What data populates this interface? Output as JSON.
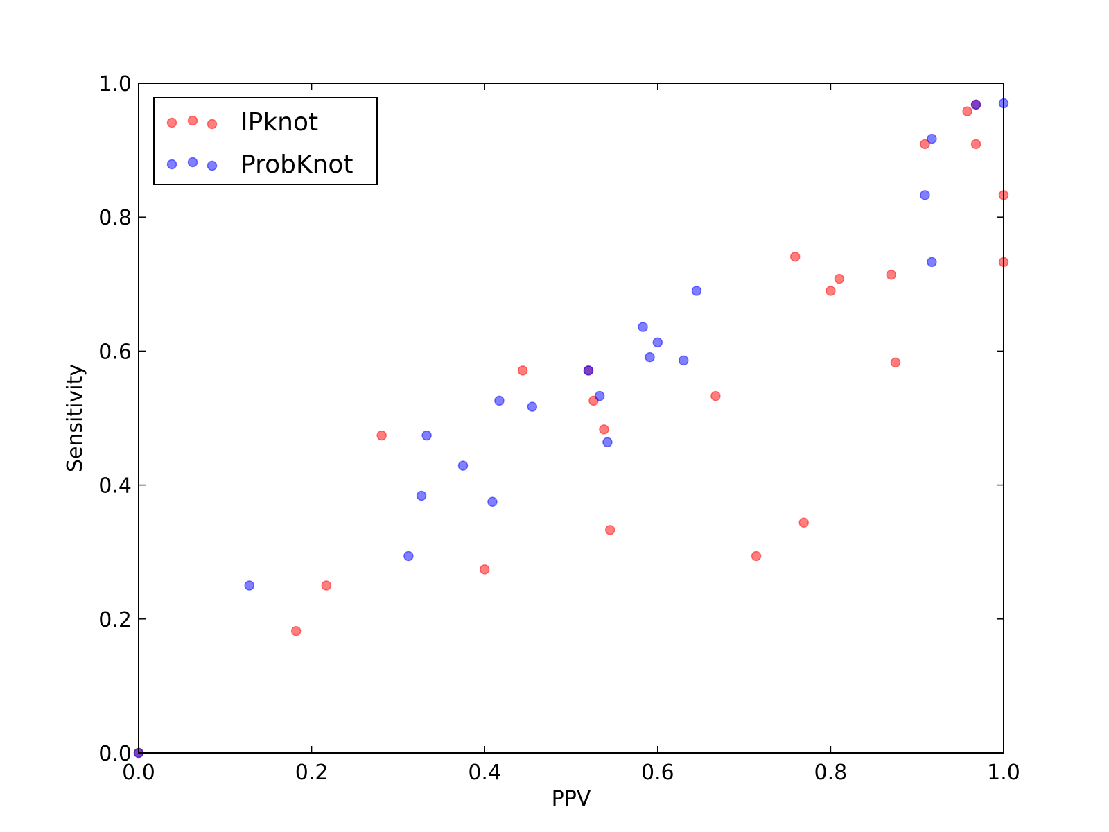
{
  "chart_data": {
    "type": "scatter",
    "xlabel": "PPV",
    "ylabel": "Sensitivity",
    "xlim": [
      0,
      1
    ],
    "ylim": [
      0,
      1
    ],
    "xticks": [
      "0.0",
      "0.2",
      "0.4",
      "0.6",
      "0.8",
      "1.0"
    ],
    "yticks": [
      "0.0",
      "0.2",
      "0.4",
      "0.6",
      "0.8",
      "1.0"
    ],
    "grid": false,
    "legend_position": "top-left",
    "series": [
      {
        "name": "IPknot",
        "color": "#ff0000",
        "points": [
          [
            0.0,
            0.0
          ],
          [
            0.182,
            0.182
          ],
          [
            0.217,
            0.25
          ],
          [
            0.281,
            0.474
          ],
          [
            0.4,
            0.274
          ],
          [
            0.444,
            0.571
          ],
          [
            0.52,
            0.571
          ],
          [
            0.526,
            0.526
          ],
          [
            0.538,
            0.483
          ],
          [
            0.545,
            0.333
          ],
          [
            0.667,
            0.533
          ],
          [
            0.714,
            0.294
          ],
          [
            0.759,
            0.741
          ],
          [
            0.769,
            0.344
          ],
          [
            0.8,
            0.69
          ],
          [
            0.81,
            0.708
          ],
          [
            0.87,
            0.714
          ],
          [
            0.875,
            0.583
          ],
          [
            0.909,
            0.909
          ],
          [
            0.958,
            0.958
          ],
          [
            0.968,
            0.968
          ],
          [
            0.968,
            0.909
          ],
          [
            1.0,
            0.833
          ],
          [
            1.0,
            0.733
          ]
        ]
      },
      {
        "name": "ProbKnot",
        "color": "#0000ff",
        "points": [
          [
            0.0,
            0.0
          ],
          [
            0.128,
            0.25
          ],
          [
            0.312,
            0.294
          ],
          [
            0.327,
            0.384
          ],
          [
            0.333,
            0.474
          ],
          [
            0.375,
            0.429
          ],
          [
            0.409,
            0.375
          ],
          [
            0.417,
            0.526
          ],
          [
            0.455,
            0.517
          ],
          [
            0.52,
            0.571
          ],
          [
            0.533,
            0.533
          ],
          [
            0.542,
            0.464
          ],
          [
            0.583,
            0.636
          ],
          [
            0.591,
            0.591
          ],
          [
            0.6,
            0.613
          ],
          [
            0.63,
            0.586
          ],
          [
            0.645,
            0.69
          ],
          [
            0.909,
            0.833
          ],
          [
            0.917,
            0.917
          ],
          [
            0.917,
            0.733
          ],
          [
            0.968,
            0.968
          ],
          [
            1.0,
            0.97
          ]
        ]
      }
    ]
  }
}
